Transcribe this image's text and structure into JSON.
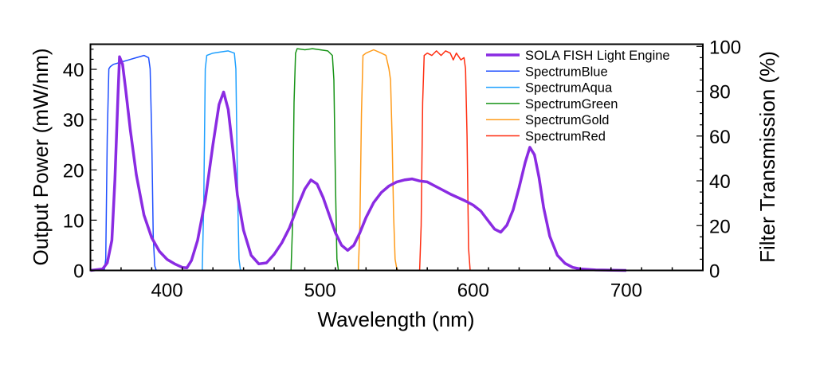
{
  "chart_data": {
    "type": "line",
    "title": "",
    "xlabel": "Wavelength (nm)",
    "ylabel": "Output Power (mW/nm)",
    "y2label": "Filter Transmission (%)",
    "xlim": [
      350,
      750
    ],
    "ylim": [
      0,
      45
    ],
    "y2lim": [
      0,
      101
    ],
    "xticks": [
      400,
      500,
      600,
      700
    ],
    "yticks": [
      0,
      10,
      20,
      30,
      40
    ],
    "y2ticks": [
      0,
      20,
      40,
      60,
      80,
      100
    ],
    "grid": false,
    "legend_position": "top-right",
    "series": [
      {
        "name": "SOLA FISH Light Engine",
        "axis": "left",
        "color": "#8a2be2",
        "x": [
          350,
          358,
          361,
          364,
          366,
          368,
          369,
          371,
          373,
          376,
          380,
          385,
          390,
          395,
          400,
          405,
          410,
          413,
          416,
          420,
          425,
          430,
          434,
          437,
          440,
          443,
          446,
          450,
          455,
          460,
          465,
          470,
          475,
          480,
          485,
          490,
          494,
          498,
          502,
          506,
          510,
          514,
          518,
          522,
          526,
          530,
          535,
          540,
          545,
          550,
          555,
          560,
          565,
          570,
          575,
          580,
          585,
          590,
          595,
          600,
          605,
          610,
          614,
          618,
          622,
          626,
          630,
          634,
          637,
          640,
          643,
          646,
          650,
          655,
          660,
          665,
          670,
          680,
          700
        ],
        "y": [
          0,
          0.3,
          1.5,
          6,
          18,
          35,
          42.5,
          41,
          36,
          28,
          19,
          11,
          6.5,
          3.8,
          2.2,
          1.3,
          0.6,
          0.5,
          2,
          6,
          14,
          25,
          33,
          35.5,
          32,
          24,
          15,
          8,
          3,
          1.3,
          1.5,
          3.2,
          5.5,
          8.5,
          12.5,
          16.2,
          18,
          17.2,
          14.5,
          11,
          7.5,
          5,
          4,
          5,
          7.5,
          10.5,
          13.5,
          15.5,
          16.8,
          17.6,
          18,
          18.2,
          17.8,
          17.6,
          16.8,
          16,
          15.2,
          14.5,
          13.8,
          13,
          11.8,
          9.8,
          8.2,
          7.6,
          9,
          12,
          16.5,
          21.5,
          24.5,
          23,
          18.5,
          12.5,
          6.8,
          3,
          1.4,
          0.6,
          0.3,
          0.1,
          0
        ]
      },
      {
        "name": "SpectrumBlue",
        "axis": "right",
        "color": "#1f4fff",
        "x": [
          350,
          359,
          360,
          361,
          362,
          363,
          365,
          370,
          375,
          380,
          385,
          388,
          389,
          390,
          391,
          392,
          393,
          750
        ],
        "y": [
          0,
          0,
          5,
          60,
          90,
          91,
          92,
          93,
          94,
          95,
          96,
          95,
          90,
          60,
          15,
          2,
          0,
          0
        ]
      },
      {
        "name": "SpectrumAqua",
        "axis": "right",
        "color": "#1ea0ff",
        "x": [
          350,
          423,
          424,
          425,
          426,
          430,
          435,
          440,
          444,
          445,
          446,
          447,
          448,
          750
        ],
        "y": [
          0,
          0,
          30,
          90,
          96,
          97,
          97.5,
          98,
          97,
          90,
          40,
          5,
          0,
          0
        ]
      },
      {
        "name": "SpectrumGreen",
        "axis": "right",
        "color": "#169316",
        "x": [
          350,
          481,
          482,
          483,
          484,
          485,
          490,
          495,
          500,
          505,
          508,
          509,
          510,
          511,
          512,
          750
        ],
        "y": [
          0,
          0,
          20,
          75,
          97,
          99,
          98.5,
          99,
          98.5,
          98,
          96,
          85,
          40,
          5,
          0,
          0
        ]
      },
      {
        "name": "SpectrumGold",
        "axis": "right",
        "color": "#ff9b1a",
        "x": [
          350,
          525,
          526,
          527,
          528,
          530,
          535,
          540,
          543,
          545,
          546,
          547,
          548,
          549,
          550,
          551,
          750
        ],
        "y": [
          0,
          0,
          20,
          70,
          96,
          97,
          98.5,
          97,
          96,
          90,
          85,
          60,
          25,
          5,
          1,
          0,
          0
        ]
      },
      {
        "name": "SpectrumRed",
        "axis": "right",
        "color": "#ff2d10",
        "x": [
          350,
          565,
          566,
          567,
          568,
          570,
          573,
          576,
          579,
          582,
          585,
          587,
          589,
          592,
          594,
          595,
          596,
          597,
          598,
          750
        ],
        "y": [
          0,
          0,
          20,
          75,
          96,
          97,
          96,
          98,
          96,
          98,
          97,
          94,
          97,
          94,
          95,
          90,
          60,
          10,
          0,
          0
        ]
      }
    ]
  }
}
